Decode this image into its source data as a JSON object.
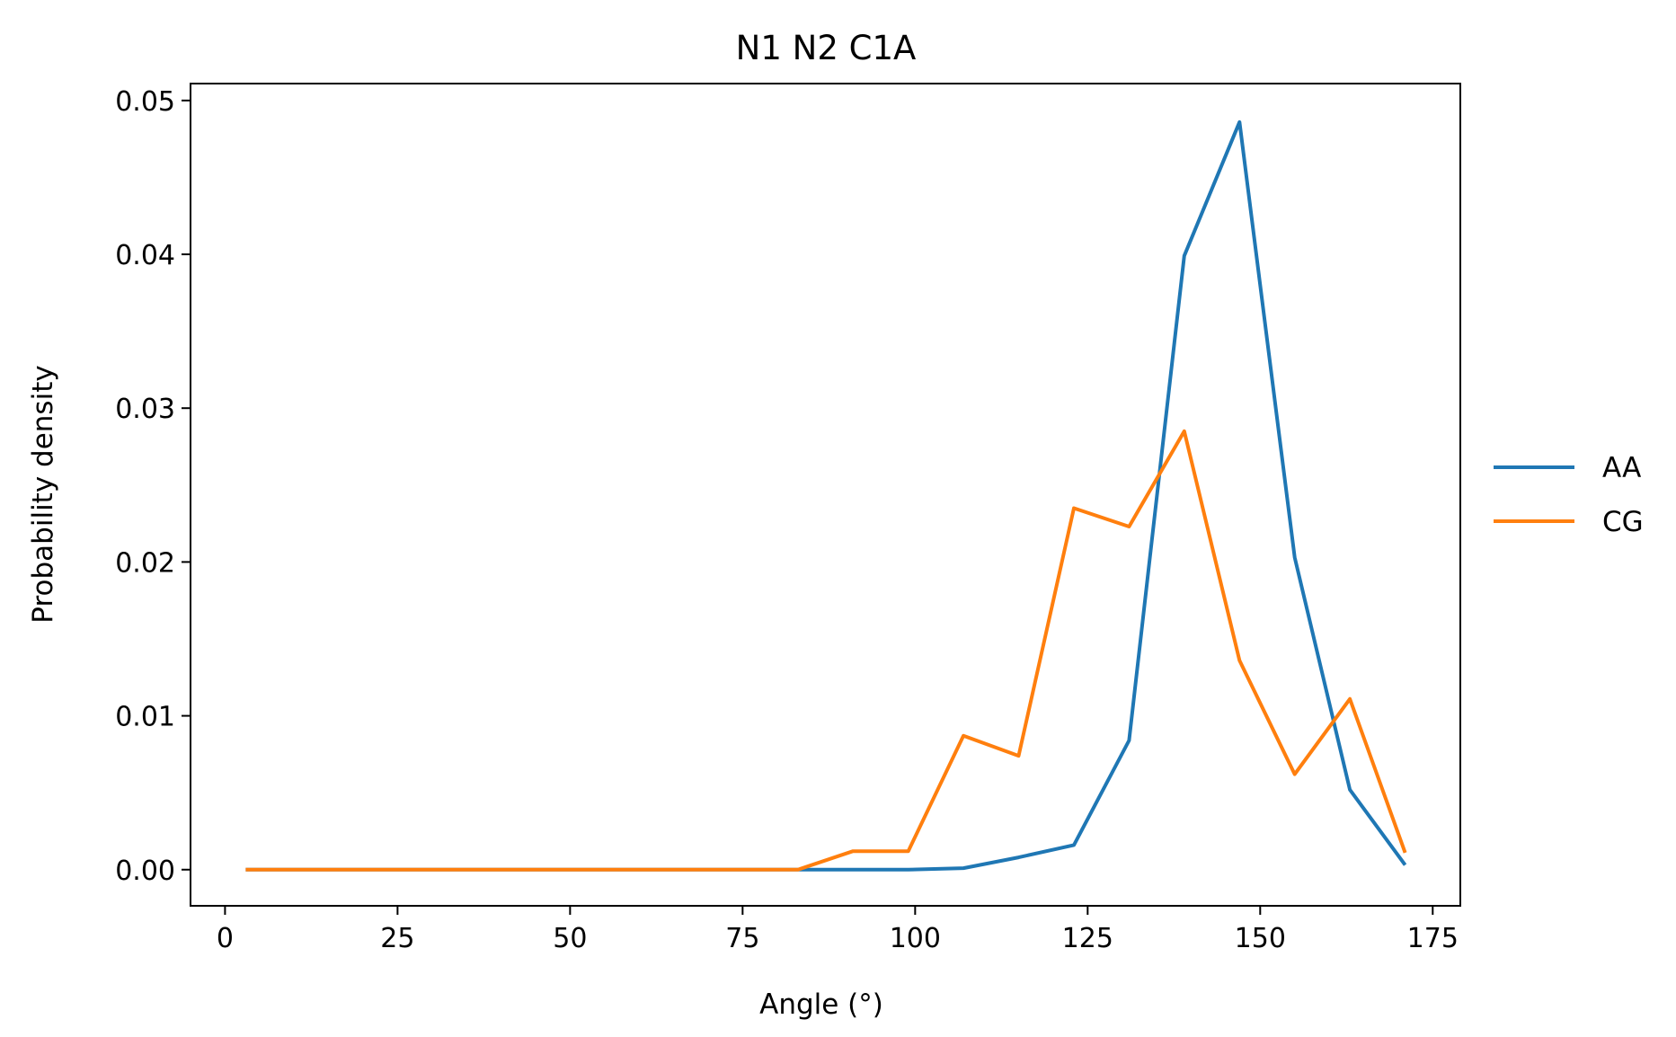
{
  "chart_data": {
    "type": "line",
    "title": "N1 N2 C1A",
    "xlabel": "Angle (°)",
    "ylabel": "Probability density",
    "xlim": [
      -5,
      179
    ],
    "ylim": [
      -0.00235,
      0.0511
    ],
    "xticks": [
      0,
      25,
      50,
      75,
      100,
      125,
      150,
      175
    ],
    "xtick_labels": [
      "0",
      "25",
      "50",
      "75",
      "100",
      "125",
      "150",
      "175"
    ],
    "yticks": [
      0,
      0.01,
      0.02,
      0.03,
      0.04,
      0.05
    ],
    "ytick_labels": [
      "0.00",
      "0.01",
      "0.02",
      "0.03",
      "0.04",
      "0.05"
    ],
    "grid": false,
    "legend_position": "outside-right",
    "x": [
      3,
      11,
      19,
      27,
      35,
      43,
      51,
      59,
      67,
      75,
      83,
      91,
      99,
      107,
      115,
      123,
      131,
      139,
      147,
      155,
      163,
      171
    ],
    "series": [
      {
        "name": "AA",
        "color": "#1f77b4",
        "values": [
          0,
          0,
          0,
          0,
          0,
          0,
          0,
          0,
          0,
          0,
          0,
          0,
          0,
          0.0001,
          0.0008,
          0.0016,
          0.0084,
          0.0399,
          0.0486,
          0.0203,
          0.0052,
          0.0003
        ]
      },
      {
        "name": "CG",
        "color": "#ff7f0e",
        "values": [
          0,
          0,
          0,
          0,
          0,
          0,
          0,
          0,
          0,
          0,
          0,
          0.0012,
          0.0012,
          0.0087,
          0.0074,
          0.0235,
          0.0223,
          0.0285,
          0.0136,
          0.0062,
          0.0111,
          0.0011
        ]
      }
    ]
  }
}
